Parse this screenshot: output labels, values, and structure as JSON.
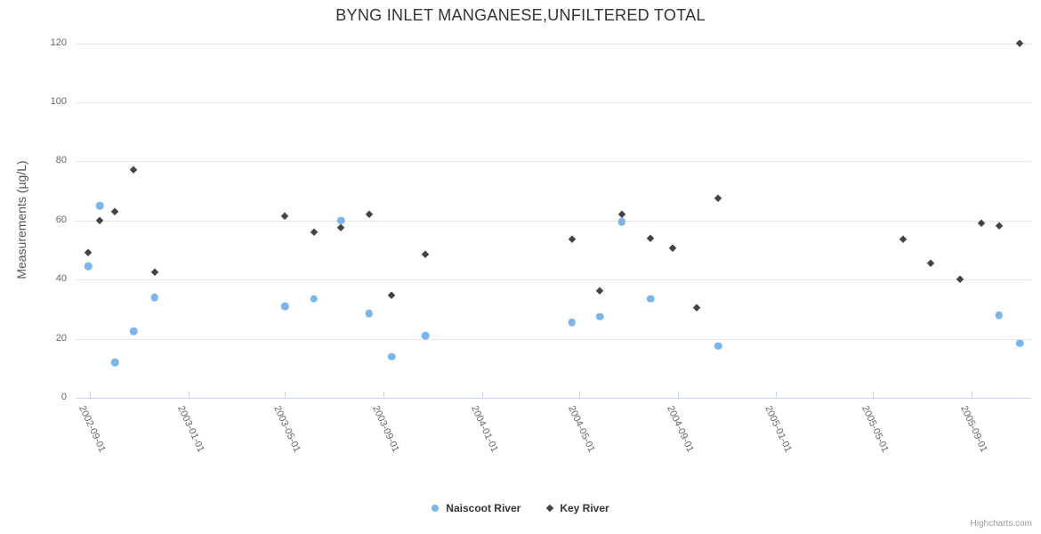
{
  "chart_data": {
    "type": "scatter",
    "title": "BYNG INLET MANGANESE,UNFILTERED TOTAL",
    "xlabel": "",
    "ylabel": "Measurements (µg/L)",
    "ylim": [
      0,
      120
    ],
    "yticks": [
      0,
      20,
      40,
      60,
      80,
      100,
      120
    ],
    "x_range": [
      "2002-08-14",
      "2005-11-14"
    ],
    "xticks": [
      "2002-09-01",
      "2003-01-01",
      "2003-05-01",
      "2003-09-01",
      "2004-01-01",
      "2004-05-01",
      "2004-09-01",
      "2005-01-01",
      "2005-05-01",
      "2005-09-01"
    ],
    "grid": true,
    "legend_position": "bottom",
    "series": [
      {
        "name": "Naiscoot River",
        "color": "#7cb5ec",
        "marker": "circle",
        "points": [
          [
            "2002-08-30",
            44.5
          ],
          [
            "2002-09-13",
            65
          ],
          [
            "2002-10-02",
            12
          ],
          [
            "2002-10-25",
            22.5
          ],
          [
            "2002-11-20",
            34
          ],
          [
            "2003-05-01",
            31
          ],
          [
            "2003-06-06",
            33.5
          ],
          [
            "2003-07-10",
            60
          ],
          [
            "2003-08-14",
            28.5
          ],
          [
            "2003-09-11",
            14
          ],
          [
            "2003-10-23",
            21
          ],
          [
            "2004-04-22",
            25.5
          ],
          [
            "2004-05-27",
            27.5
          ],
          [
            "2004-06-23",
            59.5
          ],
          [
            "2004-07-29",
            33.5
          ],
          [
            "2004-10-21",
            17.5
          ],
          [
            "2005-10-05",
            28
          ],
          [
            "2005-10-31",
            18.5
          ]
        ]
      },
      {
        "name": "Key River",
        "color": "#434348",
        "marker": "diamond",
        "points": [
          [
            "2002-08-30",
            49
          ],
          [
            "2002-09-13",
            60
          ],
          [
            "2002-10-02",
            63
          ],
          [
            "2002-10-25",
            77
          ],
          [
            "2002-11-20",
            42.5
          ],
          [
            "2003-05-01",
            61.5
          ],
          [
            "2003-06-06",
            56
          ],
          [
            "2003-07-10",
            57.5
          ],
          [
            "2003-08-14",
            62
          ],
          [
            "2003-09-11",
            34.5
          ],
          [
            "2003-10-23",
            48.5
          ],
          [
            "2004-04-22",
            53.5
          ],
          [
            "2004-05-27",
            36
          ],
          [
            "2004-06-23",
            62
          ],
          [
            "2004-07-29",
            54
          ],
          [
            "2004-08-25",
            50.5
          ],
          [
            "2004-09-24",
            30.5
          ],
          [
            "2004-10-21",
            67.5
          ],
          [
            "2005-06-08",
            53.5
          ],
          [
            "2005-07-12",
            45.5
          ],
          [
            "2005-08-17",
            40
          ],
          [
            "2005-09-13",
            59
          ],
          [
            "2005-10-05",
            58
          ],
          [
            "2005-10-31",
            120
          ]
        ]
      }
    ]
  },
  "credits": {
    "label": "Highcharts.com"
  }
}
